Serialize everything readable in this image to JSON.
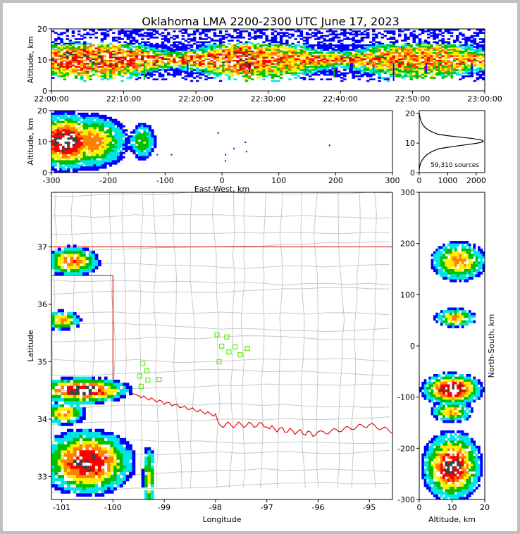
{
  "title": "Oklahoma LMA 2200-2300 UTC June 17, 2023",
  "colors": {
    "state_border": "#e01010",
    "county_lines": "#c8c8c8",
    "station_marker": "#66ee22",
    "density_scale": [
      "#ffffff",
      "#0000ff",
      "#00e5e5",
      "#00c000",
      "#ffee00",
      "#ff8000",
      "#ff0000",
      "#404040"
    ]
  },
  "chart_data": [
    {
      "id": "time_height",
      "type": "heatmap",
      "ylabel": "Altitude, km",
      "xlim": [
        "22:00:00",
        "23:00:00"
      ],
      "ylim": [
        0,
        20
      ],
      "x_ticks": [
        "22:00:00",
        "22:10:00",
        "22:20:00",
        "22:30:00",
        "22:40:00",
        "22:50:00",
        "23:00:00"
      ],
      "y_ticks": [
        0,
        10,
        20
      ],
      "band": {
        "core_altitude_km": 10,
        "min_km": 6,
        "max_km": 20
      }
    },
    {
      "id": "east_west_height",
      "type": "heatmap",
      "xlabel": "East-West, km",
      "ylabel": "Altitude, km",
      "xlim": [
        -300,
        300
      ],
      "ylim": [
        0,
        20
      ],
      "x_ticks": [
        -300,
        -200,
        -100,
        0,
        100,
        200,
        300
      ],
      "y_ticks": [
        0,
        10,
        20
      ],
      "clusters": [
        {
          "x": -275,
          "y": 10,
          "sx": 28,
          "sy": 4,
          "peak": 1.0
        },
        {
          "x": -230,
          "y": 10,
          "sx": 30,
          "sy": 4,
          "peak": 0.55
        },
        {
          "x": -140,
          "y": 10,
          "sx": 12,
          "sy": 3,
          "peak": 0.3
        }
      ]
    },
    {
      "id": "altitude_histogram",
      "type": "line",
      "xlim": [
        0,
        2300
      ],
      "ylim": [
        0,
        21
      ],
      "x_ticks": [
        0,
        1000,
        2000
      ],
      "y_ticks": [
        0,
        10,
        20
      ],
      "annotation": "59,310 sources",
      "x": [
        0,
        15,
        40,
        90,
        160,
        260,
        420,
        650,
        950,
        1300,
        1700,
        2050,
        2250,
        2200,
        1900,
        1450,
        1000,
        650,
        400,
        240,
        140,
        80,
        45,
        20,
        5
      ],
      "y": [
        1,
        2,
        3,
        4,
        5,
        6,
        7,
        8,
        8.5,
        9,
        9.5,
        10,
        10.5,
        11,
        11.5,
        12,
        12.5,
        13,
        14,
        15,
        16,
        17,
        18,
        19,
        20
      ]
    },
    {
      "id": "plan_view",
      "type": "heatmap",
      "xlabel": "Longitude",
      "ylabel": "Latitude",
      "xlim": [
        -101.2,
        -94.55
      ],
      "ylim": [
        32.6,
        37.95
      ],
      "x_ticks": [
        -101,
        -100,
        -99,
        -98,
        -97,
        -96,
        -95
      ],
      "y_ticks": [
        33,
        34,
        35,
        36,
        37
      ],
      "clusters": [
        {
          "lon": -100.8,
          "lat": 36.75,
          "slon": 0.25,
          "slat": 0.12,
          "peak": 0.6
        },
        {
          "lon": -101.0,
          "lat": 35.72,
          "slon": 0.18,
          "slat": 0.08,
          "peak": 0.5
        },
        {
          "lon": -100.6,
          "lat": 34.5,
          "slon": 0.4,
          "slat": 0.1,
          "peak": 1.0
        },
        {
          "lon": -100.95,
          "lat": 34.1,
          "slon": 0.2,
          "slat": 0.1,
          "peak": 0.5
        },
        {
          "lon": -100.5,
          "lat": 33.25,
          "slon": 0.4,
          "slat": 0.25,
          "peak": 0.9
        },
        {
          "lon": -99.3,
          "lat": 32.95,
          "slon": 0.06,
          "slat": 0.3,
          "peak": 0.4
        }
      ],
      "stations": [
        [
          -97.97,
          35.47
        ],
        [
          -97.78,
          35.43
        ],
        [
          -97.88,
          35.27
        ],
        [
          -97.62,
          35.26
        ],
        [
          -97.74,
          35.17
        ],
        [
          -97.93,
          35.0
        ],
        [
          -97.52,
          35.12
        ],
        [
          -97.38,
          35.23
        ],
        [
          -99.42,
          34.97
        ],
        [
          -99.34,
          34.84
        ],
        [
          -99.48,
          34.75
        ],
        [
          -99.32,
          34.68
        ],
        [
          -99.1,
          34.69
        ],
        [
          -99.45,
          34.57
        ]
      ]
    },
    {
      "id": "height_north_south",
      "type": "heatmap",
      "xlabel": "Altitude, km",
      "ylabel": "North-South, km",
      "xlim": [
        0,
        20
      ],
      "ylim": [
        -300,
        300
      ],
      "x_ticks": [
        0,
        10,
        20
      ],
      "y_ticks": [
        -300,
        -200,
        -100,
        0,
        100,
        200,
        300
      ],
      "clusters": [
        {
          "x": 12,
          "y": 165,
          "sx": 4,
          "sy": 18,
          "peak": 0.55
        },
        {
          "x": 11,
          "y": 55,
          "sx": 3,
          "sy": 9,
          "peak": 0.5
        },
        {
          "x": 10,
          "y": -85,
          "sx": 4,
          "sy": 14,
          "peak": 1.0
        },
        {
          "x": 10,
          "y": -128,
          "sx": 3,
          "sy": 10,
          "peak": 0.5
        },
        {
          "x": 10,
          "y": -235,
          "sx": 4,
          "sy": 30,
          "peak": 0.9
        }
      ]
    }
  ]
}
